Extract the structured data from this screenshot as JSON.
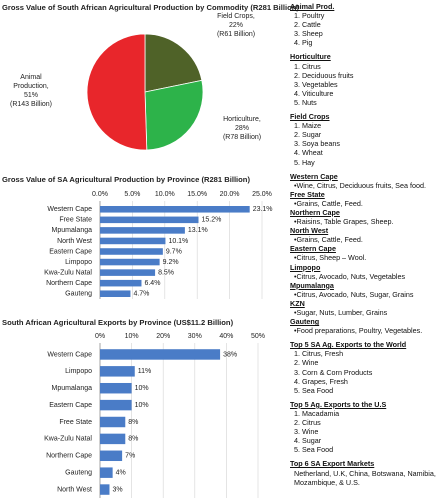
{
  "chart_data": [
    {
      "type": "pie",
      "title": "Gross Value of South African Agricultural Production by Commodity (R281 Billion)",
      "categories": [
        "Field Crops,",
        "Horticulture,",
        "Animal Production,"
      ],
      "values": [
        22,
        28,
        51
      ],
      "value_labels": [
        "22%",
        "28%",
        "51%"
      ],
      "amounts": [
        "(R61 Billion)",
        "(R78 Billion)",
        "(R143 Billion)"
      ],
      "colors": [
        "#4f6228",
        "#2db34a",
        "#e8262b"
      ]
    },
    {
      "type": "hbar",
      "title": "Gross Value of SA Agricultural Production by Province (R281 Billion)",
      "categories": [
        "Western Cape",
        "Free State",
        "Mpumalanga",
        "North West",
        "Eastern Cape",
        "Limpopo",
        "Kwa-Zulu Natal",
        "Northern Cape",
        "Gauteng"
      ],
      "values": [
        23.1,
        15.2,
        13.1,
        10.1,
        9.7,
        9.2,
        8.5,
        6.4,
        4.7
      ],
      "value_labels": [
        "23.1%",
        "15.2%",
        "13.1%",
        "10.1%",
        "9.7%",
        "9.2%",
        "8.5%",
        "6.4%",
        "4.7%"
      ],
      "color": "#4a7cc7",
      "xlim": [
        0,
        25
      ],
      "xticks": [
        {
          "value": 0,
          "label": "0.0%"
        },
        {
          "value": 5,
          "label": "5.0%"
        },
        {
          "value": 10,
          "label": "10.0%"
        },
        {
          "value": 15,
          "label": "15.0%"
        },
        {
          "value": 20,
          "label": "20.0%"
        },
        {
          "value": 25,
          "label": "25.0%"
        }
      ],
      "grid": true
    },
    {
      "type": "hbar",
      "title": "South African Agricultural Exports by Province (US$11.2 Billion)",
      "categories": [
        "Western Cape",
        "Limpopo",
        "Mpumalanga",
        "Eastern Cape",
        "Free State",
        "Kwa-Zulu Natal",
        "Northern Cape",
        "Gauteng",
        "North West"
      ],
      "values": [
        38,
        11,
        10,
        10,
        8,
        8,
        7,
        4,
        3
      ],
      "value_labels": [
        "38%",
        "11%",
        "10%",
        "10%",
        "8%",
        "8%",
        "7%",
        "4%",
        "3%"
      ],
      "color": "#4a7cc7",
      "xlim": [
        0,
        50
      ],
      "xticks": [
        {
          "value": 0,
          "label": "0%"
        },
        {
          "value": 10,
          "label": "10%"
        },
        {
          "value": 20,
          "label": "20%"
        },
        {
          "value": 30,
          "label": "30%"
        },
        {
          "value": 40,
          "label": "40%"
        },
        {
          "value": 50,
          "label": "50%"
        }
      ],
      "grid": true
    }
  ],
  "sidebar": [
    [
      {
        "heading": "Animal Prod.",
        "items": [
          "1. Poultry",
          "2. Cattle",
          "3. Sheep",
          "4. Pig"
        ]
      }
    ],
    [
      {
        "heading": "Horticulture",
        "items": [
          "1. Citrus",
          "2. Deciduous fruits",
          "3. Vegetables",
          "4. Viticulture",
          "5. Nuts"
        ]
      }
    ],
    [
      {
        "heading": "Field Crops",
        "items": [
          "1. Maize",
          "2. Sugar",
          "3. Soya beans",
          "4. Wheat",
          "5. Hay"
        ]
      }
    ],
    [
      {
        "heading": "Western Cape",
        "items": [
          "•Wine, Citrus, Deciduous fruits, Sea food."
        ]
      },
      {
        "heading": "Free State",
        "items": [
          "•Grains, Cattle, Feed."
        ]
      },
      {
        "heading": "Northern Cape",
        "items": [
          "•Raisins, Table Grapes, Sheep."
        ]
      },
      {
        "heading": "North West",
        "items": [
          "•Grains, Cattle, Feed."
        ]
      },
      {
        "heading": "Eastern Cape",
        "items": [
          "•Citrus, Sheep – Wool."
        ]
      },
      {
        "heading": "Limpopo",
        "items": [
          "•Citrus, Avocado, Nuts, Vegetables"
        ]
      },
      {
        "heading": "Mpumalanga",
        "items": [
          "•Citrus, Avocado, Nuts, Sugar, Grains"
        ]
      },
      {
        "heading": "KZN",
        "items": [
          "•Sugar, Nuts, Lumber, Grains"
        ]
      },
      {
        "heading": "Gauteng",
        "items": [
          "•Food preparations, Poultry, Vegetables."
        ]
      }
    ],
    [
      {
        "heading": "Top 5 SA Ag. Exports to the World",
        "items": [
          "1. Citrus, Fresh",
          "2. Wine",
          "3. Corn & Corn Products",
          "4. Grapes, Fresh",
          "5. Sea Food"
        ]
      }
    ],
    [
      {
        "heading": "Top 5 Ag. Exports to the U.S",
        "items": [
          "1. Macadamia",
          "2. Citrus",
          "3. Wine",
          "4. Sugar",
          "5. Sea Food"
        ]
      }
    ],
    [
      {
        "heading": "Top 6 SA Export Markets",
        "items": [
          "Netherland, U.K, China, Botswana, Namibia, Mozambique, & U.S."
        ]
      }
    ]
  ]
}
